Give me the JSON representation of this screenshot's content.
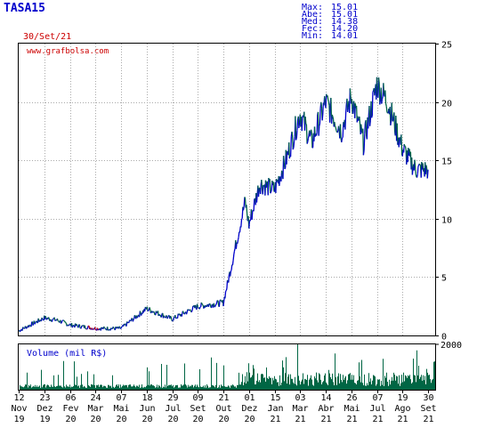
{
  "header": {
    "ticker": "TASA15",
    "date": "30/Set/21",
    "stats": [
      {
        "label": "Max:",
        "value": "15.01"
      },
      {
        "label": "Abe:",
        "value": "15.01"
      },
      {
        "label": "Med:",
        "value": "14.38"
      },
      {
        "label": "Fec:",
        "value": "14.20"
      },
      {
        "label": "Min:",
        "value": "14.01"
      }
    ]
  },
  "colors": {
    "up": "#0000cc",
    "down": "#006644",
    "drop": "#cc0000",
    "volume": "#006644",
    "grid": "#aaaaaa",
    "text": "#0000cc"
  },
  "chart_data": [
    {
      "type": "line",
      "watermark": "www.grafbolsa.com",
      "ylim": [
        0,
        25
      ],
      "yticks": [
        0,
        5,
        10,
        15,
        20,
        25
      ],
      "x_tick_labels": [
        [
          "12",
          "Nov",
          "19"
        ],
        [
          "23",
          "Dez",
          "19"
        ],
        [
          "06",
          "Fev",
          "20"
        ],
        [
          "24",
          "Mar",
          "20"
        ],
        [
          "07",
          "Mai",
          "20"
        ],
        [
          "18",
          "Jun",
          "20"
        ],
        [
          "29",
          "Jul",
          "20"
        ],
        [
          "09",
          "Set",
          "20"
        ],
        [
          "21",
          "Out",
          "20"
        ],
        [
          "01",
          "Dez",
          "20"
        ],
        [
          "15",
          "Jan",
          "21"
        ],
        [
          "03",
          "Mar",
          "21"
        ],
        [
          "14",
          "Abr",
          "21"
        ],
        [
          "26",
          "Mai",
          "21"
        ],
        [
          "07",
          "Jul",
          "21"
        ],
        [
          "19",
          "Ago",
          "21"
        ],
        [
          "30",
          "Set",
          "21"
        ]
      ],
      "x": [
        "2019-11-12",
        "2019-12-23",
        "2020-01-15",
        "2020-02-06",
        "2020-03-10",
        "2020-03-24",
        "2020-05-07",
        "2020-06-18",
        "2020-07-29",
        "2020-09-09",
        "2020-10-21",
        "2020-11-01",
        "2020-11-25",
        "2020-12-01",
        "2020-12-20",
        "2021-01-15",
        "2021-02-05",
        "2021-03-03",
        "2021-03-22",
        "2021-04-14",
        "2021-05-10",
        "2021-05-26",
        "2021-06-15",
        "2021-07-07",
        "2021-07-25",
        "2021-08-19",
        "2021-09-10",
        "2021-09-30"
      ],
      "close": [
        0.4,
        1.5,
        1.3,
        0.9,
        0.7,
        0.6,
        0.6,
        2.3,
        1.4,
        2.5,
        2.8,
        5.5,
        11.5,
        9.5,
        13,
        12.5,
        15,
        19,
        16.5,
        20,
        17.5,
        20.5,
        16.5,
        21.5,
        20,
        16,
        14.2,
        14.2
      ]
    },
    {
      "type": "bar",
      "title": "Volume (mil R$)",
      "ylim": [
        0,
        2000
      ],
      "yticks": [
        2000
      ]
    }
  ]
}
